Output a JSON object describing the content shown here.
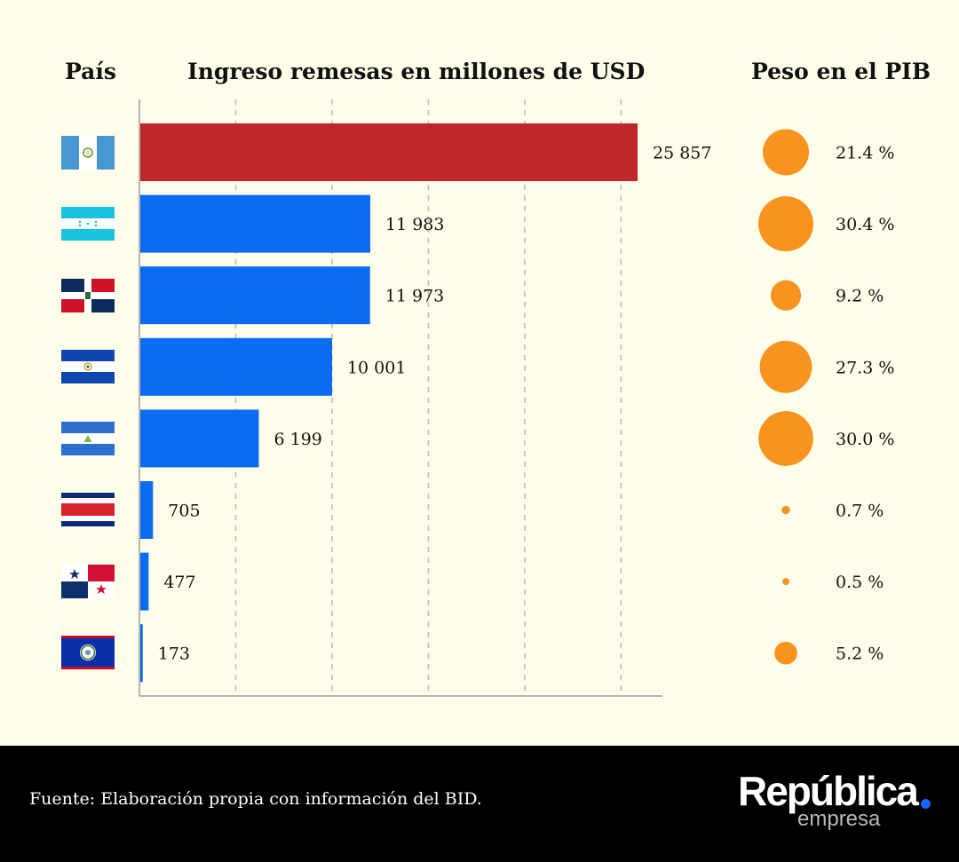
{
  "headers": {
    "country": "País",
    "remittances": "Ingreso remesas en millones de USD",
    "gdp": "Peso en el PIB"
  },
  "chart_data": {
    "type": "bar",
    "orientation": "horizontal",
    "title": "Ingreso remesas en millones de USD",
    "xlabel": "",
    "ylabel": "País",
    "xlim": [
      0,
      27000
    ],
    "grid": true,
    "categories": [
      "Guatemala",
      "Honduras",
      "República Dominicana",
      "El Salvador",
      "Nicaragua",
      "Costa Rica",
      "Panamá",
      "Belice"
    ],
    "values": [
      25857,
      11983,
      11973,
      10001,
      6199,
      705,
      477,
      173
    ],
    "value_labels": [
      "25 857",
      "11 983",
      "11 973",
      "10 001",
      "6 199",
      "705",
      "477",
      "173"
    ],
    "highlight_index": 0,
    "gdp_share": {
      "title": "Peso en el PIB",
      "unit": "%",
      "values": [
        21.4,
        30.4,
        9.2,
        27.3,
        30.0,
        0.7,
        0.5,
        5.2
      ],
      "labels": [
        "21.4 %",
        "30.4 %",
        "9.2 %",
        "27.3 %",
        "30.0 %",
        "0.7 %",
        "0.5 %",
        "5.2 %"
      ]
    }
  },
  "colors": {
    "background": "#fefde9",
    "highlight_bar": "#c0272d",
    "bar": "#0a6cf2",
    "bubble": "#f7931e",
    "grid": "#bdbdbd",
    "axis": "#b5b5b5",
    "footer_bg": "#000000",
    "brand_dot": "#1565ff"
  },
  "footer": {
    "source": "Fuente: Elaboración propia con información del BID.",
    "brand_name": "República",
    "brand_sub": "empresa"
  }
}
